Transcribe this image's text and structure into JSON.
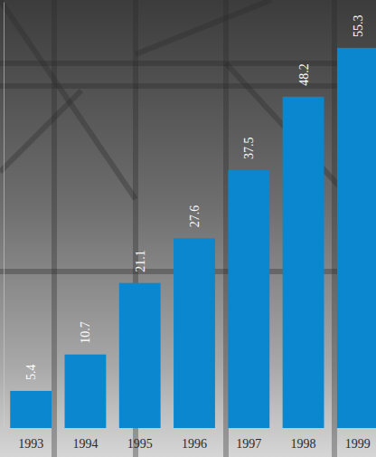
{
  "chart_data": {
    "type": "bar",
    "categories": [
      "1993",
      "1994",
      "1995",
      "1996",
      "1997",
      "1998",
      "1999"
    ],
    "values": [
      5.4,
      10.7,
      21.1,
      27.6,
      37.5,
      48.2,
      55.3
    ],
    "color": "#0a87cf",
    "ylim": [
      0,
      62
    ],
    "data_labels": true,
    "tick_labels": "x"
  }
}
